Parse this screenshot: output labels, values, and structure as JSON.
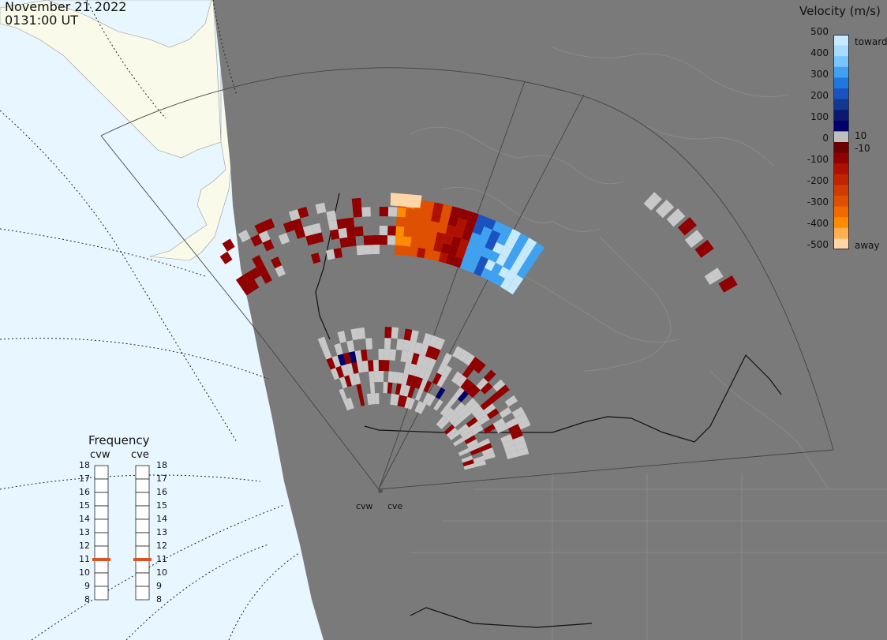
{
  "header": {
    "date": "November 21 2022",
    "time": "0131:00 UT"
  },
  "colorbar": {
    "title": "Velocity (m/s)",
    "tick_labels": [
      "500",
      "400",
      "300",
      "200",
      "100",
      "0",
      "-100",
      "-200",
      "-300",
      "-400",
      "-500"
    ],
    "threshold_labels": [
      "10",
      "-10"
    ],
    "end_labels": {
      "top": "toward",
      "bottom": "away"
    },
    "colors": [
      "#c6eaff",
      "#a5dcff",
      "#78c5ff",
      "#3fa2f0",
      "#1f78e0",
      "#1a52c0",
      "#143890",
      "#0a1a70",
      "#00006a",
      "#bfbfbf",
      "#6a0000",
      "#900000",
      "#b01000",
      "#c02400",
      "#d03c00",
      "#e05000",
      "#f06a00",
      "#ff8c00",
      "#ffae50",
      "#ffd6a8"
    ]
  },
  "frequency_panel": {
    "title": "Frequency",
    "radars": [
      {
        "name": "cvw",
        "frequency_mhz": 11
      },
      {
        "name": "cve",
        "frequency_mhz": 11
      }
    ],
    "scale": [
      "18",
      "17",
      "16",
      "15",
      "14",
      "13",
      "12",
      "11",
      "10",
      "9",
      "8"
    ],
    "indicator_color": "#e05020"
  },
  "map": {
    "sites": [
      {
        "label": "cvw"
      },
      {
        "label": "cve"
      }
    ],
    "colors": {
      "land": "#7a7a7a",
      "ocean": "#e8f6ff",
      "alaska": "#fafaea",
      "no_scatter": "#c8c8c8"
    }
  }
}
